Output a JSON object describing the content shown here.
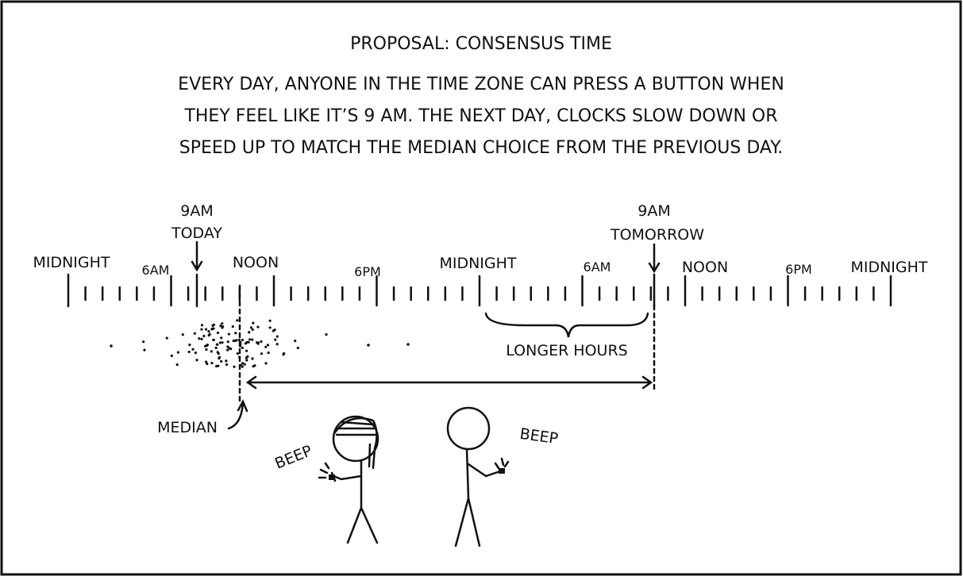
{
  "header": {
    "title": "PROPOSAL: CONSENSUS TIME",
    "lines": [
      "EVERY DAY, ANYONE IN THE TIME ZONE CAN PRESS A BUTTON WHEN",
      "THEY FEEL LIKE IT’S 9 AM. THE NEXT DAY, CLOCKS SLOW DOWN OR",
      "SPEED UP TO MATCH THE MEDIAN CHOICE FROM THE PREVIOUS DAY."
    ]
  },
  "timeline": {
    "today": [
      "9AM",
      "TODAY"
    ],
    "tomorrow": [
      "9AM",
      "TOMORROW"
    ],
    "labels": [
      "MIDNIGHT",
      "6AM",
      "NOON",
      "6PM",
      "MIDNIGHT",
      "6AM",
      "NOON",
      "6PM",
      "MIDNIGHT"
    ],
    "longer": "LONGER HOURS",
    "median": "MEDIAN"
  },
  "people": {
    "left": "BEEP",
    "right": "BEEP"
  }
}
